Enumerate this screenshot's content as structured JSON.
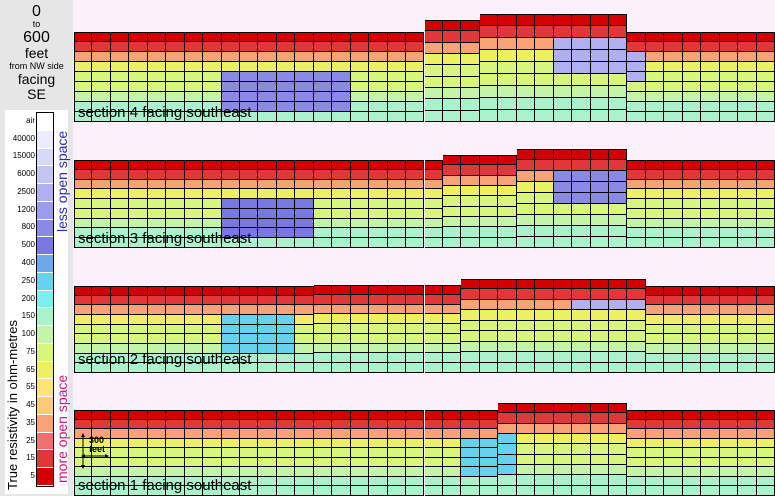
{
  "header": {
    "from": "0",
    "to_word": "to",
    "to": "600",
    "unit": "feet",
    "origin_note": "from NW side",
    "facing_word": "facing",
    "facing_dir": "SE"
  },
  "legend": {
    "axis_title": "True resistivity in ohm-metres",
    "less_label": "less open space",
    "more_label": "more open space",
    "less_color": "#2a2ad0",
    "more_color": "#e0107a",
    "ticks": [
      "air",
      "40000",
      "15000",
      "6000",
      "2500",
      "1200",
      "800",
      "500",
      "400",
      "250",
      "200",
      "150",
      "100",
      "75",
      "65",
      "55",
      "45",
      "35",
      "25",
      "15",
      "5"
    ],
    "colors": [
      "#ffffff",
      "#ececfc",
      "#d8d8f8",
      "#c4c4f4",
      "#b0b0f0",
      "#9c9cec",
      "#8a8ae4",
      "#7878e0",
      "#6fa8ea",
      "#66d2ee",
      "#7eeeee",
      "#aaf2cc",
      "#c4f4a8",
      "#d8f67c",
      "#eef064",
      "#fce47a",
      "#fdca7c",
      "#f8a278",
      "#f07070",
      "#e03838",
      "#d20000"
    ]
  },
  "scale_label": "300 feet",
  "sections": [
    {
      "label": "section 4 facing southeast"
    },
    {
      "label": "section 3 facing southeast"
    },
    {
      "label": "section 2 facing southeast"
    },
    {
      "label": "section 1 facing southeast"
    }
  ]
}
